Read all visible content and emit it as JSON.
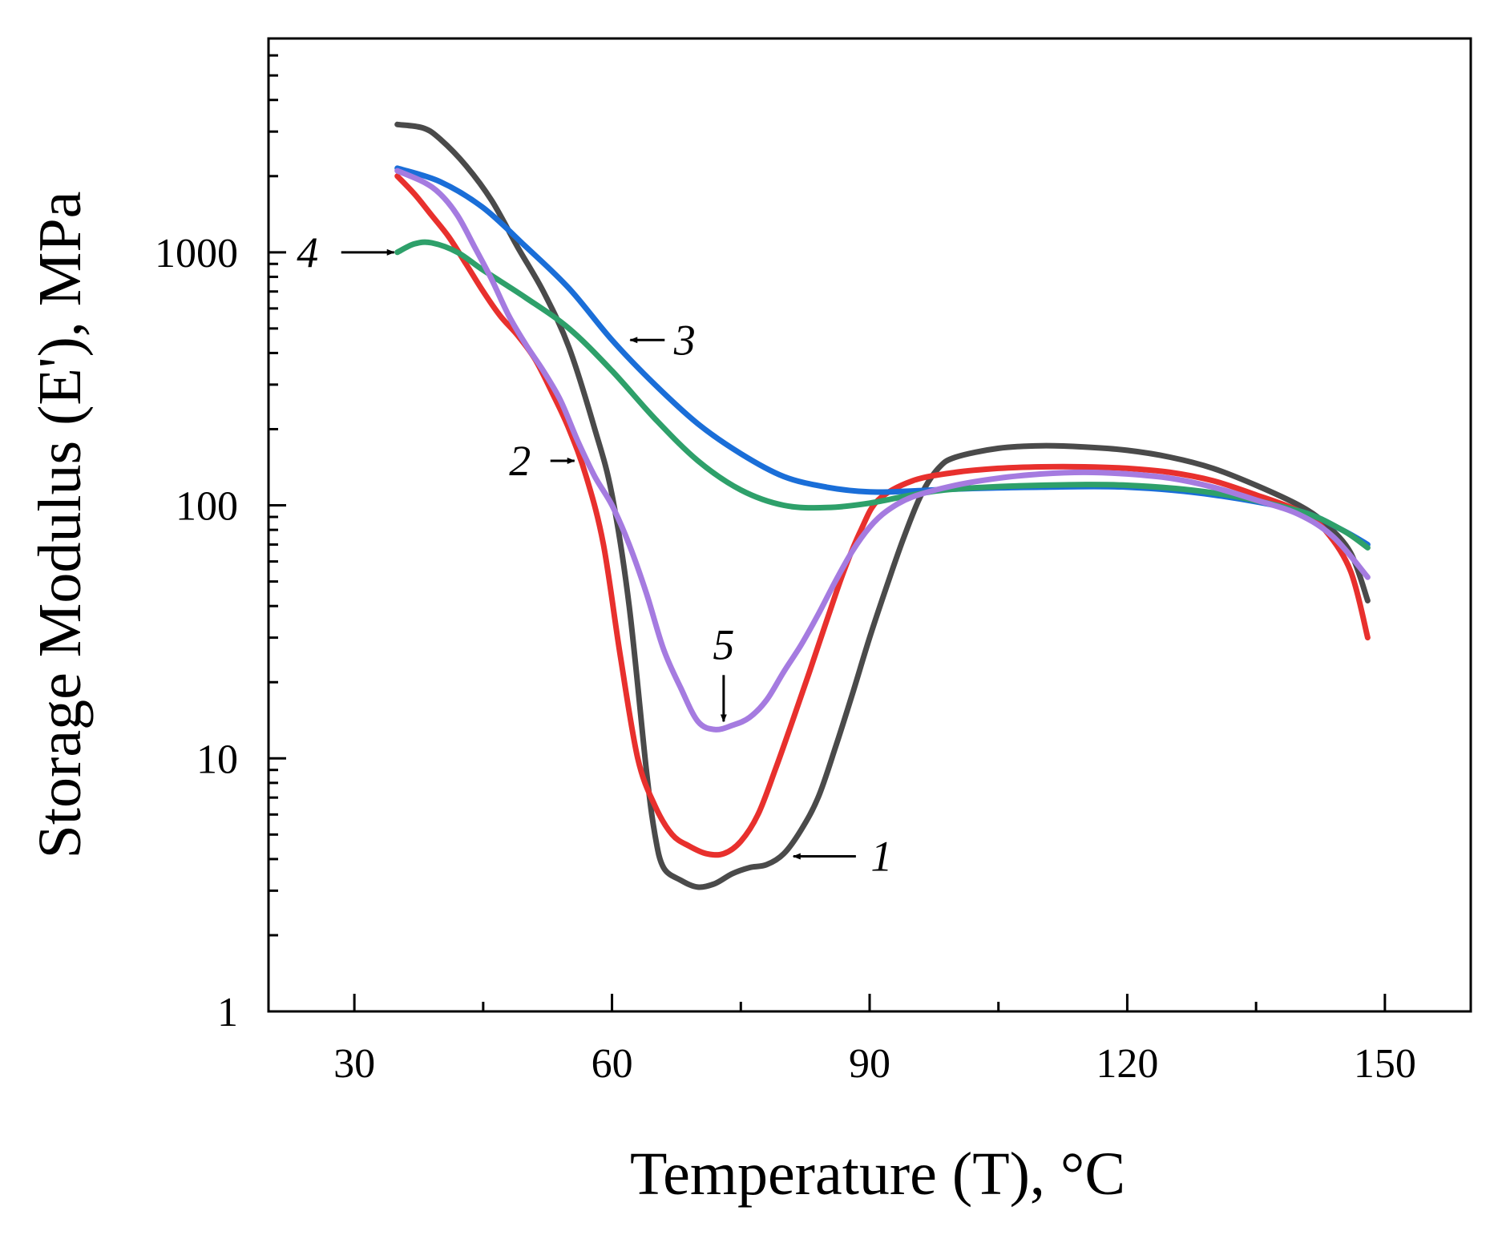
{
  "chart_data": {
    "type": "line",
    "xlabel": "Temperature (T), °C",
    "ylabel": "Storage Modulus (E'), MPa",
    "xlim": [
      20,
      160
    ],
    "ylim": [
      1,
      7000
    ],
    "yscale": "log",
    "x_ticks": [
      30,
      60,
      90,
      120,
      150
    ],
    "x_tick_labels": [
      "30",
      "60",
      "90",
      "120",
      "150"
    ],
    "y_ticks": [
      1,
      10,
      100,
      1000
    ],
    "y_tick_labels": [
      "1",
      "10",
      "100",
      "1000"
    ],
    "grid": false,
    "series": [
      {
        "name": "1",
        "color": "#4a4a4a",
        "points": [
          [
            35,
            3200
          ],
          [
            38,
            3100
          ],
          [
            40,
            2800
          ],
          [
            43,
            2200
          ],
          [
            46,
            1600
          ],
          [
            49,
            1050
          ],
          [
            52,
            700
          ],
          [
            55,
            420
          ],
          [
            58,
            200
          ],
          [
            60,
            110
          ],
          [
            62,
            40
          ],
          [
            64,
            9
          ],
          [
            65,
            5
          ],
          [
            66,
            3.7
          ],
          [
            68,
            3.3
          ],
          [
            70,
            3.1
          ],
          [
            72,
            3.2
          ],
          [
            74,
            3.5
          ],
          [
            76,
            3.7
          ],
          [
            78,
            3.8
          ],
          [
            80,
            4.2
          ],
          [
            82,
            5.2
          ],
          [
            84,
            7
          ],
          [
            86,
            11
          ],
          [
            88,
            18
          ],
          [
            90,
            30
          ],
          [
            92,
            48
          ],
          [
            94,
            75
          ],
          [
            96,
            110
          ],
          [
            98,
            140
          ],
          [
            100,
            155
          ],
          [
            105,
            168
          ],
          [
            110,
            172
          ],
          [
            115,
            170
          ],
          [
            120,
            165
          ],
          [
            125,
            155
          ],
          [
            130,
            140
          ],
          [
            135,
            120
          ],
          [
            140,
            100
          ],
          [
            143,
            85
          ],
          [
            146,
            65
          ],
          [
            148,
            42
          ]
        ]
      },
      {
        "name": "2",
        "color": "#e8302d",
        "points": [
          [
            35,
            2000
          ],
          [
            37,
            1700
          ],
          [
            39,
            1400
          ],
          [
            41,
            1150
          ],
          [
            43,
            900
          ],
          [
            45,
            700
          ],
          [
            47,
            560
          ],
          [
            49,
            470
          ],
          [
            51,
            380
          ],
          [
            53,
            280
          ],
          [
            55,
            200
          ],
          [
            57,
            130
          ],
          [
            59,
            70
          ],
          [
            61,
            25
          ],
          [
            63,
            10
          ],
          [
            65,
            6.5
          ],
          [
            67,
            5
          ],
          [
            69,
            4.5
          ],
          [
            71,
            4.2
          ],
          [
            73,
            4.2
          ],
          [
            75,
            4.7
          ],
          [
            77,
            6
          ],
          [
            79,
            9
          ],
          [
            81,
            14
          ],
          [
            83,
            22
          ],
          [
            85,
            35
          ],
          [
            87,
            55
          ],
          [
            89,
            80
          ],
          [
            91,
            105
          ],
          [
            95,
            125
          ],
          [
            100,
            135
          ],
          [
            105,
            140
          ],
          [
            110,
            142
          ],
          [
            115,
            142
          ],
          [
            120,
            140
          ],
          [
            125,
            135
          ],
          [
            130,
            125
          ],
          [
            135,
            110
          ],
          [
            140,
            95
          ],
          [
            143,
            80
          ],
          [
            146,
            55
          ],
          [
            148,
            30
          ]
        ]
      },
      {
        "name": "3",
        "color": "#1a6ed8",
        "points": [
          [
            35,
            2150
          ],
          [
            40,
            1900
          ],
          [
            45,
            1500
          ],
          [
            50,
            1050
          ],
          [
            55,
            720
          ],
          [
            60,
            450
          ],
          [
            65,
            300
          ],
          [
            70,
            210
          ],
          [
            75,
            160
          ],
          [
            80,
            130
          ],
          [
            85,
            118
          ],
          [
            90,
            113
          ],
          [
            95,
            114
          ],
          [
            100,
            116
          ],
          [
            110,
            118
          ],
          [
            120,
            118
          ],
          [
            130,
            110
          ],
          [
            140,
            95
          ],
          [
            145,
            80
          ],
          [
            148,
            70
          ]
        ]
      },
      {
        "name": "4",
        "color": "#2ea06a",
        "points": [
          [
            35,
            1000
          ],
          [
            37,
            1080
          ],
          [
            39,
            1090
          ],
          [
            42,
            1000
          ],
          [
            45,
            850
          ],
          [
            50,
            660
          ],
          [
            55,
            500
          ],
          [
            60,
            340
          ],
          [
            65,
            220
          ],
          [
            70,
            150
          ],
          [
            75,
            115
          ],
          [
            80,
            100
          ],
          [
            85,
            98
          ],
          [
            90,
            102
          ],
          [
            95,
            110
          ],
          [
            100,
            116
          ],
          [
            110,
            120
          ],
          [
            120,
            120
          ],
          [
            130,
            112
          ],
          [
            140,
            95
          ],
          [
            145,
            80
          ],
          [
            148,
            68
          ]
        ]
      },
      {
        "name": "5",
        "color": "#a57be0",
        "points": [
          [
            35,
            2100
          ],
          [
            38,
            1900
          ],
          [
            40,
            1700
          ],
          [
            42,
            1400
          ],
          [
            44,
            1050
          ],
          [
            46,
            780
          ],
          [
            48,
            560
          ],
          [
            50,
            430
          ],
          [
            52,
            340
          ],
          [
            54,
            260
          ],
          [
            56,
            180
          ],
          [
            58,
            130
          ],
          [
            60,
            100
          ],
          [
            62,
            70
          ],
          [
            64,
            45
          ],
          [
            66,
            27
          ],
          [
            68,
            19
          ],
          [
            70,
            14
          ],
          [
            72,
            13
          ],
          [
            74,
            13.5
          ],
          [
            76,
            14.5
          ],
          [
            78,
            17
          ],
          [
            80,
            22
          ],
          [
            82,
            28
          ],
          [
            84,
            37
          ],
          [
            86,
            50
          ],
          [
            88,
            66
          ],
          [
            90,
            82
          ],
          [
            92,
            95
          ],
          [
            95,
            108
          ],
          [
            100,
            120
          ],
          [
            105,
            128
          ],
          [
            110,
            133
          ],
          [
            115,
            135
          ],
          [
            120,
            133
          ],
          [
            125,
            128
          ],
          [
            130,
            118
          ],
          [
            135,
            105
          ],
          [
            140,
            92
          ],
          [
            144,
            75
          ],
          [
            148,
            52
          ]
        ]
      }
    ],
    "annotations": [
      {
        "label": "1",
        "series": "1",
        "arrow_at": [
          80,
          4.1
        ]
      },
      {
        "label": "2",
        "series": "2",
        "arrow_at": [
          56,
          150
        ]
      },
      {
        "label": "3",
        "series": "3",
        "arrow_at": [
          61,
          450
        ]
      },
      {
        "label": "4",
        "series": "4",
        "arrow_at": [
          35,
          1000
        ]
      },
      {
        "label": "5",
        "series": "5",
        "arrow_at": [
          73,
          13
        ]
      }
    ]
  }
}
